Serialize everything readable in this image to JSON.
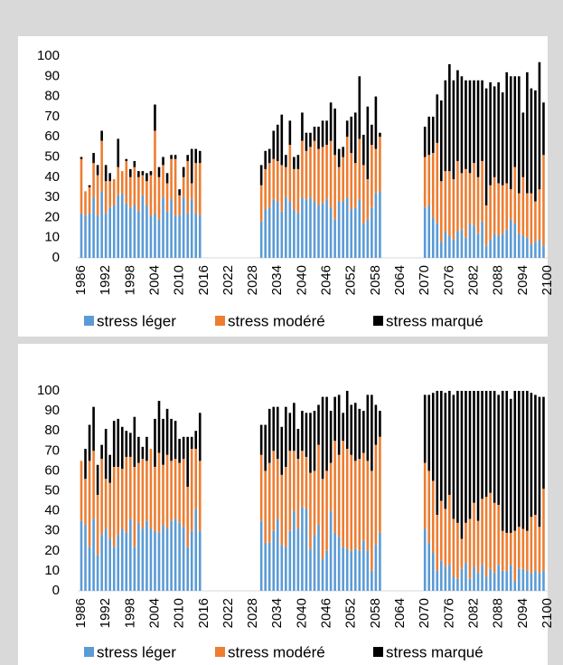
{
  "chart_data": [
    {
      "type": "bar",
      "stacked": true,
      "x": [
        1986,
        1987,
        1988,
        1989,
        1990,
        1991,
        1992,
        1993,
        1994,
        1995,
        1996,
        1997,
        1998,
        1999,
        2000,
        2001,
        2002,
        2003,
        2004,
        2005,
        2006,
        2007,
        2008,
        2009,
        2010,
        2011,
        2012,
        2013,
        2014,
        2015,
        2030,
        2031,
        2032,
        2033,
        2034,
        2035,
        2036,
        2037,
        2038,
        2039,
        2040,
        2041,
        2042,
        2043,
        2044,
        2045,
        2046,
        2047,
        2048,
        2049,
        2050,
        2051,
        2052,
        2053,
        2054,
        2055,
        2056,
        2057,
        2058,
        2059,
        2070,
        2071,
        2072,
        2073,
        2074,
        2075,
        2076,
        2077,
        2078,
        2079,
        2080,
        2081,
        2082,
        2083,
        2084,
        2085,
        2086,
        2087,
        2088,
        2089,
        2090,
        2091,
        2092,
        2093,
        2094,
        2095,
        2096,
        2097,
        2098,
        2099
      ],
      "series": [
        {
          "name": "stress léger",
          "color": "#5b9bd5",
          "values": [
            22,
            21,
            22,
            30,
            21,
            33,
            22,
            25,
            26,
            31,
            32,
            27,
            25,
            26,
            23,
            31,
            26,
            21,
            22,
            19,
            30,
            23,
            29,
            21,
            21,
            30,
            22,
            29,
            22,
            21,
            18,
            24,
            25,
            29,
            28,
            23,
            30,
            28,
            24,
            22,
            30,
            29,
            30,
            28,
            26,
            27,
            29,
            25,
            19,
            28,
            28,
            30,
            24,
            25,
            29,
            17,
            19,
            25,
            32,
            33,
            25,
            26,
            20,
            17,
            8,
            13,
            11,
            9,
            13,
            14,
            10,
            17,
            16,
            12,
            18,
            6,
            9,
            12,
            11,
            12,
            14,
            19,
            17,
            12,
            11,
            10,
            7,
            8,
            9,
            6
          ]
        },
        {
          "name": "stress modéré",
          "color": "#ed7d31",
          "values": [
            27,
            12,
            13,
            17,
            20,
            25,
            16,
            13,
            13,
            14,
            11,
            21,
            15,
            19,
            17,
            10,
            12,
            20,
            41,
            21,
            16,
            14,
            20,
            28,
            10,
            10,
            26,
            8,
            25,
            26,
            18,
            20,
            22,
            20,
            20,
            23,
            15,
            28,
            20,
            22,
            28,
            24,
            25,
            30,
            28,
            28,
            27,
            33,
            32,
            17,
            22,
            30,
            28,
            22,
            30,
            29,
            20,
            31,
            22,
            27,
            25,
            25,
            32,
            40,
            30,
            30,
            32,
            30,
            35,
            28,
            34,
            25,
            31,
            28,
            30,
            20,
            27,
            28,
            26,
            24,
            23,
            15,
            28,
            20,
            29,
            22,
            25,
            20,
            25,
            45
          ]
        },
        {
          "name": "stress marqué",
          "color": "#000000",
          "values": [
            1,
            0,
            1,
            5,
            5,
            5,
            8,
            4,
            0,
            14,
            0,
            1,
            4,
            3,
            3,
            2,
            4,
            2,
            13,
            5,
            4,
            5,
            2,
            2,
            3,
            5,
            3,
            17,
            7,
            6,
            10,
            9,
            7,
            14,
            18,
            25,
            6,
            12,
            6,
            7,
            14,
            9,
            7,
            7,
            11,
            13,
            12,
            19,
            23,
            9,
            5,
            8,
            18,
            25,
            31,
            15,
            36,
            10,
            26,
            2,
            15,
            19,
            18,
            24,
            40,
            45,
            53,
            49,
            45,
            48,
            44,
            46,
            41,
            48,
            40,
            58,
            51,
            45,
            50,
            46,
            55,
            56,
            45,
            58,
            32,
            60,
            52,
            55,
            63,
            26
          ]
        }
      ],
      "xlim": [
        1986,
        2100
      ],
      "xticks": [
        1986,
        1992,
        1998,
        2004,
        2010,
        2016,
        2022,
        2028,
        2034,
        2040,
        2046,
        2052,
        2058,
        2064,
        2070,
        2076,
        2082,
        2088,
        2094,
        2100
      ],
      "ylim": [
        0,
        100
      ],
      "yticks": [
        0,
        10,
        20,
        30,
        40,
        50,
        60,
        70,
        80,
        90,
        100
      ],
      "grid": false,
      "legend": "bottom"
    },
    {
      "type": "bar",
      "stacked": true,
      "x": [
        1986,
        1987,
        1988,
        1989,
        1990,
        1991,
        1992,
        1993,
        1994,
        1995,
        1996,
        1997,
        1998,
        1999,
        2000,
        2001,
        2002,
        2003,
        2004,
        2005,
        2006,
        2007,
        2008,
        2009,
        2010,
        2011,
        2012,
        2013,
        2014,
        2015,
        2030,
        2031,
        2032,
        2033,
        2034,
        2035,
        2036,
        2037,
        2038,
        2039,
        2040,
        2041,
        2042,
        2043,
        2044,
        2045,
        2046,
        2047,
        2048,
        2049,
        2050,
        2051,
        2052,
        2053,
        2054,
        2055,
        2056,
        2057,
        2058,
        2059,
        2070,
        2071,
        2072,
        2073,
        2074,
        2075,
        2076,
        2077,
        2078,
        2079,
        2080,
        2081,
        2082,
        2083,
        2084,
        2085,
        2086,
        2087,
        2088,
        2089,
        2090,
        2091,
        2092,
        2093,
        2094,
        2095,
        2096,
        2097,
        2098,
        2099
      ],
      "series": [
        {
          "name": "stress léger",
          "color": "#5b9bd5",
          "values": [
            35,
            33,
            22,
            36,
            18,
            28,
            31,
            26,
            22,
            28,
            31,
            29,
            36,
            22,
            34,
            31,
            35,
            31,
            30,
            29,
            33,
            31,
            35,
            36,
            34,
            32,
            22,
            30,
            41,
            30,
            35,
            24,
            24,
            30,
            36,
            23,
            22,
            30,
            40,
            31,
            42,
            41,
            21,
            28,
            33,
            16,
            20,
            40,
            29,
            27,
            22,
            21,
            20,
            21,
            20,
            25,
            20,
            10,
            23,
            29,
            31,
            24,
            19,
            10,
            15,
            12,
            13,
            7,
            6,
            11,
            14,
            6,
            12,
            9,
            13,
            7,
            11,
            9,
            13,
            10,
            10,
            13,
            5,
            11,
            11,
            10,
            9,
            10,
            9,
            10
          ]
        },
        {
          "name": "stress modéré",
          "color": "#ed7d31",
          "values": [
            30,
            23,
            43,
            34,
            30,
            38,
            25,
            28,
            40,
            34,
            30,
            38,
            31,
            40,
            30,
            35,
            30,
            40,
            32,
            40,
            30,
            37,
            30,
            30,
            30,
            34,
            30,
            41,
            30,
            35,
            33,
            36,
            40,
            40,
            30,
            35,
            40,
            40,
            30,
            35,
            28,
            26,
            38,
            32,
            40,
            40,
            40,
            24,
            46,
            41,
            53,
            50,
            48,
            44,
            46,
            44,
            45,
            50,
            50,
            48,
            33,
            36,
            36,
            28,
            30,
            29,
            35,
            29,
            28,
            15,
            20,
            30,
            32,
            26,
            33,
            40,
            38,
            35,
            30,
            20,
            19,
            16,
            25,
            21,
            20,
            20,
            28,
            28,
            23,
            41
          ]
        },
        {
          "name": "stress marqué",
          "color": "#000000",
          "values": [
            0,
            15,
            18,
            22,
            15,
            7,
            25,
            14,
            23,
            24,
            21,
            13,
            12,
            25,
            13,
            6,
            12,
            0,
            24,
            26,
            23,
            23,
            21,
            19,
            12,
            11,
            25,
            6,
            9,
            24,
            15,
            23,
            27,
            22,
            26,
            24,
            30,
            19,
            24,
            15,
            20,
            22,
            30,
            30,
            20,
            41,
            37,
            26,
            22,
            30,
            14,
            29,
            25,
            29,
            25,
            21,
            33,
            38,
            20,
            13,
            34,
            38,
            44,
            62,
            55,
            58,
            52,
            62,
            66,
            74,
            66,
            64,
            56,
            65,
            54,
            53,
            51,
            56,
            55,
            70,
            71,
            67,
            70,
            68,
            69,
            70,
            62,
            60,
            65,
            46
          ]
        }
      ],
      "xlim": [
        1986,
        2100
      ],
      "xticks": [
        1986,
        1992,
        1998,
        2004,
        2010,
        2016,
        2022,
        2028,
        2034,
        2040,
        2046,
        2052,
        2058,
        2064,
        2070,
        2076,
        2082,
        2088,
        2094,
        2100
      ],
      "ylim": [
        0,
        100
      ],
      "yticks": [
        0,
        10,
        20,
        30,
        40,
        50,
        60,
        70,
        80,
        90,
        100
      ],
      "grid": false,
      "legend": "bottom"
    }
  ]
}
